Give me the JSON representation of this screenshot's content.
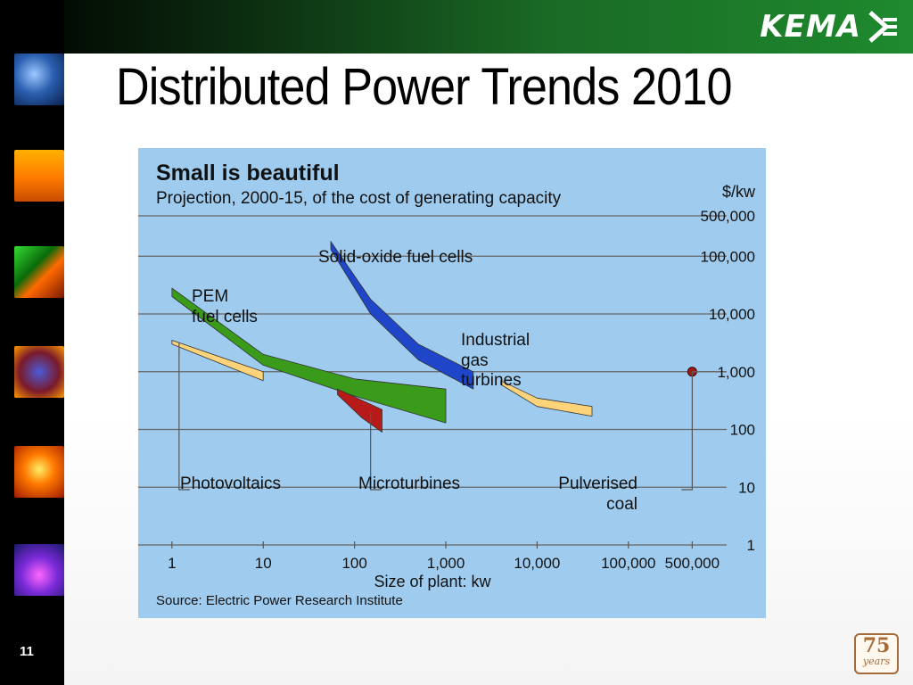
{
  "slide": {
    "title": "Distributed Power Trends 2010",
    "number": "11",
    "logo_text": "KEMA",
    "badge_number": "75",
    "badge_text": "years"
  },
  "sidebar_images": [
    "data-stream",
    "wind-turbine",
    "circuit-board",
    "globe",
    "fire",
    "network-lights"
  ],
  "chart_data": {
    "type": "area",
    "title": "Small is beautiful",
    "subtitle": "Projection, 2000-15, of the cost of generating capacity",
    "xlabel": "Size of plant: kw",
    "ylabel": "$/kw",
    "source": "Source: Electric Power Research Institute",
    "xscale": "log",
    "yscale": "log",
    "x_ticks": [
      1,
      10,
      100,
      1000,
      10000,
      100000,
      500000
    ],
    "x_tick_labels": [
      "1",
      "10",
      "100",
      "1,000",
      "10,000",
      "100,000",
      "500,000"
    ],
    "y_ticks": [
      1,
      10,
      100,
      1000,
      10000,
      100000,
      500000
    ],
    "y_tick_labels": [
      "1",
      "10",
      "100",
      "1,000",
      "10,000",
      "100,000",
      "500,000"
    ],
    "xlim": [
      0.7,
      2000000
    ],
    "ylim": [
      1,
      500000
    ],
    "series": [
      {
        "name": "Photovoltaics",
        "color": "#ffd37a",
        "upper": [
          [
            1,
            3500
          ],
          [
            10,
            1000
          ]
        ],
        "lower": [
          [
            1,
            3000
          ],
          [
            10,
            700
          ]
        ]
      },
      {
        "name": "PEM fuel cells",
        "color": "#3a9a1a",
        "upper": [
          [
            1,
            28000
          ],
          [
            10,
            2000
          ],
          [
            100,
            750
          ],
          [
            1000,
            500
          ]
        ],
        "lower": [
          [
            1,
            20000
          ],
          [
            10,
            1300
          ],
          [
            100,
            380
          ],
          [
            1000,
            130
          ]
        ]
      },
      {
        "name": "Microturbines",
        "color": "#b81a1a",
        "upper": [
          [
            65,
            500
          ],
          [
            200,
            220
          ]
        ],
        "lower": [
          [
            65,
            400
          ],
          [
            120,
            160
          ],
          [
            200,
            90
          ]
        ]
      },
      {
        "name": "Solid-oxide fuel cells",
        "color": "#1f45c8",
        "upper": [
          [
            55,
            180000
          ],
          [
            150,
            18000
          ],
          [
            500,
            3000
          ],
          [
            2000,
            1000
          ]
        ],
        "lower": [
          [
            55,
            130000
          ],
          [
            150,
            10000
          ],
          [
            500,
            1600
          ],
          [
            2000,
            500
          ]
        ]
      },
      {
        "name": "Industrial gas turbines",
        "color": "#ffd37a",
        "upper": [
          [
            4000,
            700
          ],
          [
            10000,
            350
          ],
          [
            40000,
            250
          ]
        ],
        "lower": [
          [
            4000,
            600
          ],
          [
            10000,
            250
          ],
          [
            40000,
            170
          ]
        ]
      },
      {
        "name": "Pulverised coal",
        "color": "#a01a1a",
        "points": [
          [
            500000,
            1000
          ]
        ]
      }
    ],
    "labels": {
      "solid_oxide": "Solid-oxide fuel cells",
      "pem_1": "PEM",
      "pem_2": "fuel cells",
      "industrial_1": "Industrial",
      "industrial_2": "gas",
      "industrial_3": "turbines",
      "photovoltaics": "Photovoltaics",
      "microturbines": "Microturbines",
      "coal_1": "Pulverised",
      "coal_2": "coal"
    }
  }
}
